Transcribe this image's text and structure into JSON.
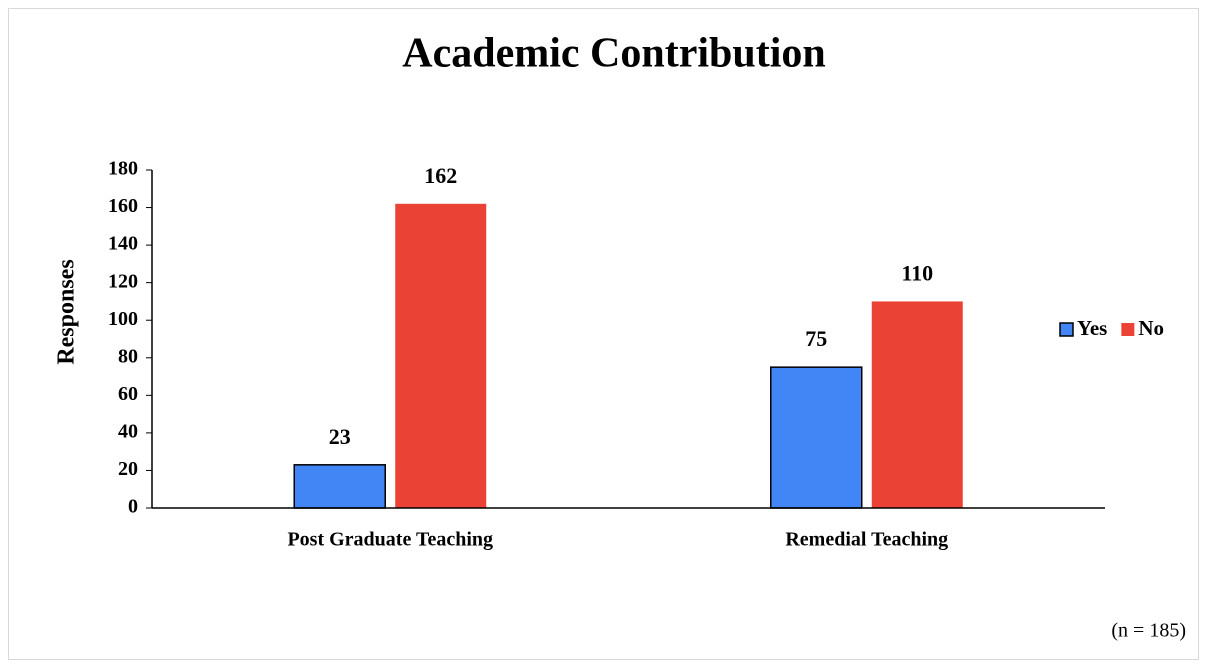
{
  "chart_data": {
    "type": "bar",
    "title": "Academic Contribution",
    "y_label": "Responses",
    "note": "(n = 185)",
    "categories": [
      "Post Graduate Teaching",
      "Remedial Teaching"
    ],
    "series": [
      {
        "name": "Yes",
        "color": "#4285f4",
        "values": [
          23,
          75
        ]
      },
      {
        "name": "No",
        "color": "#ea4335",
        "values": [
          162,
          110
        ]
      }
    ],
    "ylim": [
      0,
      180
    ],
    "yticks": [
      0,
      20,
      40,
      60,
      80,
      100,
      120,
      140,
      160,
      180
    ],
    "grid": false,
    "legend": "right"
  }
}
